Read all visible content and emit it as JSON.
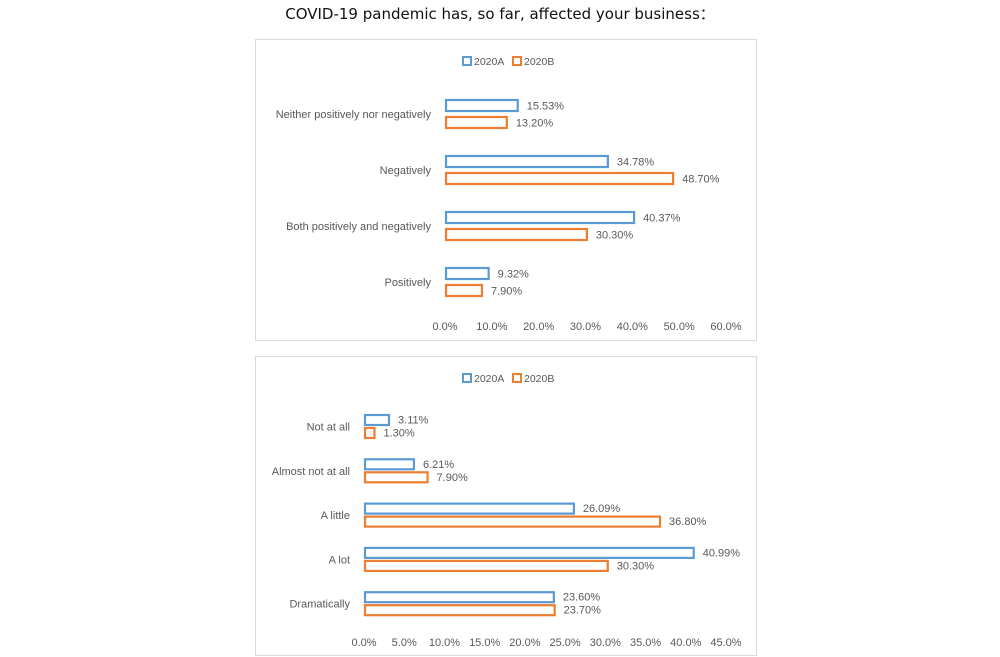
{
  "page": {
    "title": "COVID-19 pandemic has, so far, affected your business："
  },
  "colors": {
    "series_a": "#5b9bd5",
    "series_b": "#ed7d31",
    "text": "#595959",
    "border": "#d9d9d9"
  },
  "chart_data": [
    {
      "type": "bar",
      "orientation": "horizontal",
      "title": "",
      "legend": "top-center",
      "categories": [
        "Neither positively nor negatively",
        "Negatively",
        "Both positively and negatively",
        "Positively"
      ],
      "series": [
        {
          "name": "2020A",
          "values": [
            15.53,
            34.78,
            40.37,
            9.32
          ],
          "labels": [
            "15.53%",
            "34.78%",
            "40.37%",
            "9.32%"
          ]
        },
        {
          "name": "2020B",
          "values": [
            13.2,
            48.7,
            30.3,
            7.9
          ],
          "labels": [
            "13.20%",
            "48.70%",
            "30.30%",
            "7.90%"
          ]
        }
      ],
      "xlim": [
        0,
        60
      ],
      "ticks": [
        "0.0%",
        "10.0%",
        "20.0%",
        "30.0%",
        "40.0%",
        "50.0%",
        "60.0%"
      ],
      "xlabel": "",
      "ylabel": "",
      "grid": false
    },
    {
      "type": "bar",
      "orientation": "horizontal",
      "title": "",
      "legend": "top-center",
      "categories": [
        "Not at all",
        "Almost not at all",
        "A little",
        "A lot",
        "Dramatically"
      ],
      "series": [
        {
          "name": "2020A",
          "values": [
            3.11,
            6.21,
            26.09,
            40.99,
            23.6
          ],
          "labels": [
            "3.11%",
            "6.21%",
            "26.09%",
            "40.99%",
            "23.60%"
          ]
        },
        {
          "name": "2020B",
          "values": [
            1.3,
            7.9,
            36.8,
            30.3,
            23.7
          ],
          "labels": [
            "1.30%",
            "7.90%",
            "36.80%",
            "30.30%",
            "23.70%"
          ]
        }
      ],
      "xlim": [
        0,
        45
      ],
      "ticks": [
        "0.0%",
        "5.0%",
        "10.0%",
        "15.0%",
        "20.0%",
        "25.0%",
        "30.0%",
        "35.0%",
        "40.0%",
        "45.0%"
      ],
      "xlabel": "",
      "ylabel": "",
      "grid": false
    }
  ]
}
